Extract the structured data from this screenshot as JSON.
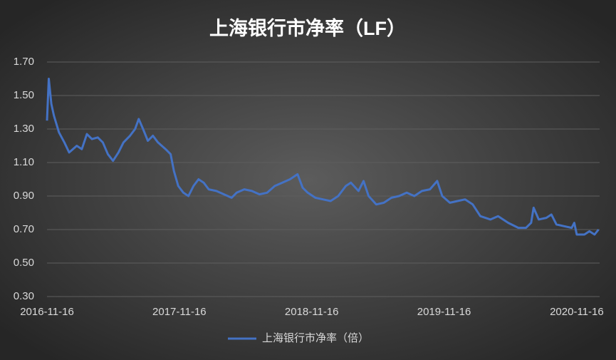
{
  "chart_data": {
    "type": "line",
    "title": "上海银行市净率（LF）",
    "x": [
      "2016-11-16",
      "2016-11-21",
      "2016-11-28",
      "2016-12-05",
      "2016-12-19",
      "2017-01-03",
      "2017-01-16",
      "2017-02-06",
      "2017-02-20",
      "2017-03-06",
      "2017-03-20",
      "2017-04-05",
      "2017-04-19",
      "2017-05-03",
      "2017-05-17",
      "2017-06-01",
      "2017-06-15",
      "2017-07-03",
      "2017-07-17",
      "2017-07-27",
      "2017-08-08",
      "2017-08-21",
      "2017-09-04",
      "2017-09-18",
      "2017-10-09",
      "2017-10-23",
      "2017-11-01",
      "2017-11-13",
      "2017-11-27",
      "2017-12-11",
      "2017-12-25",
      "2018-01-08",
      "2018-01-22",
      "2018-02-05",
      "2018-02-26",
      "2018-03-19",
      "2018-04-09",
      "2018-04-23",
      "2018-05-14",
      "2018-06-04",
      "2018-06-25",
      "2018-07-16",
      "2018-08-06",
      "2018-08-27",
      "2018-09-17",
      "2018-10-08",
      "2018-10-22",
      "2018-11-05",
      "2018-11-26",
      "2018-12-17",
      "2019-01-07",
      "2019-01-28",
      "2019-02-18",
      "2019-03-04",
      "2019-03-25",
      "2019-04-08",
      "2019-04-22",
      "2019-05-13",
      "2019-06-03",
      "2019-06-24",
      "2019-07-15",
      "2019-08-05",
      "2019-08-26",
      "2019-09-16",
      "2019-10-08",
      "2019-10-28",
      "2019-11-11",
      "2019-12-02",
      "2019-12-23",
      "2020-01-13",
      "2020-02-03",
      "2020-02-24",
      "2020-03-23",
      "2020-04-13",
      "2020-05-11",
      "2020-06-08",
      "2020-06-29",
      "2020-07-13",
      "2020-07-20",
      "2020-08-03",
      "2020-08-24",
      "2020-09-07",
      "2020-09-21",
      "2020-10-12",
      "2020-11-02",
      "2020-11-09",
      "2020-11-16",
      "2020-12-07",
      "2020-12-21",
      "2021-01-04",
      "2021-01-15"
    ],
    "series": [
      {
        "name": "上海银行市净率（倍）",
        "color": "#4472c4",
        "values": [
          1.35,
          1.6,
          1.45,
          1.38,
          1.28,
          1.22,
          1.16,
          1.2,
          1.18,
          1.27,
          1.24,
          1.25,
          1.22,
          1.15,
          1.11,
          1.16,
          1.22,
          1.26,
          1.3,
          1.36,
          1.3,
          1.23,
          1.26,
          1.22,
          1.18,
          1.15,
          1.05,
          0.96,
          0.92,
          0.9,
          0.96,
          1.0,
          0.98,
          0.94,
          0.93,
          0.91,
          0.89,
          0.92,
          0.94,
          0.93,
          0.91,
          0.92,
          0.96,
          0.98,
          1.0,
          1.03,
          0.95,
          0.92,
          0.89,
          0.88,
          0.87,
          0.9,
          0.96,
          0.98,
          0.93,
          0.99,
          0.9,
          0.85,
          0.86,
          0.89,
          0.9,
          0.92,
          0.9,
          0.93,
          0.94,
          0.99,
          0.9,
          0.86,
          0.87,
          0.88,
          0.85,
          0.78,
          0.76,
          0.78,
          0.74,
          0.71,
          0.71,
          0.74,
          0.83,
          0.76,
          0.77,
          0.79,
          0.73,
          0.72,
          0.71,
          0.74,
          0.67,
          0.67,
          0.69,
          0.67,
          0.7
        ]
      }
    ],
    "xlim": [
      "2016-11-16",
      "2021-01-18"
    ],
    "xticks": [
      "2016-11-16",
      "2017-11-16",
      "2018-11-16",
      "2019-11-16",
      "2020-11-16"
    ],
    "ylim": [
      0.3,
      1.7
    ],
    "yticks": [
      {
        "value": 0.3,
        "label": "0.30"
      },
      {
        "value": 0.5,
        "label": "0.50"
      },
      {
        "value": 0.7,
        "label": "0.70"
      },
      {
        "value": 0.9,
        "label": "0.90"
      },
      {
        "value": 1.1,
        "label": "1.10"
      },
      {
        "value": 1.3,
        "label": "1.30"
      },
      {
        "value": 1.5,
        "label": "1.50"
      },
      {
        "value": 1.7,
        "label": "1.70"
      }
    ],
    "grid": true,
    "legend": "bottom"
  }
}
